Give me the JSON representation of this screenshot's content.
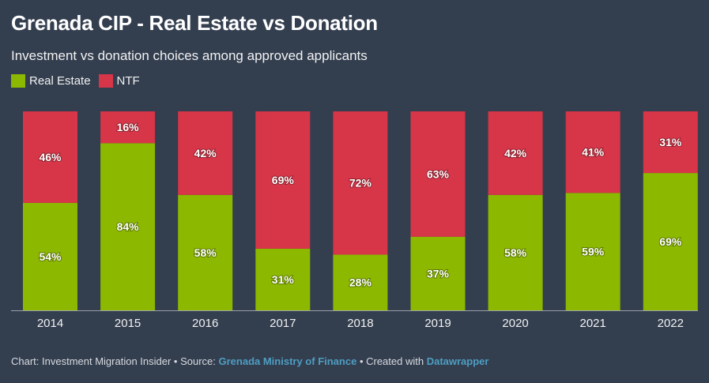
{
  "header": {
    "title": "Grenada CIP - Real Estate vs Donation",
    "subtitle": "Investment vs donation choices among approved applicants"
  },
  "legend": [
    {
      "label": "Real Estate",
      "color": "#8cb800"
    },
    {
      "label": "NTF",
      "color": "#d73548"
    }
  ],
  "footer": {
    "chart_prefix": "Chart: Investment Migration Insider • Source: ",
    "source_link": "Grenada Ministry of Finance",
    "created_prefix": " • Created with ",
    "created_link": "Datawrapper"
  },
  "chart_data": {
    "type": "bar",
    "stacked": true,
    "orientation": "vertical",
    "title": "Grenada CIP - Real Estate vs Donation",
    "subtitle": "Investment vs donation choices among approved applicants",
    "xlabel": "",
    "ylabel": "",
    "ylim": [
      0,
      100
    ],
    "grid": false,
    "legend_position": "top-left",
    "categories": [
      "2014",
      "2015",
      "2016",
      "2017",
      "2018",
      "2019",
      "2020",
      "2021",
      "2022"
    ],
    "series": [
      {
        "name": "Real Estate",
        "color": "#8cb800",
        "values": [
          54,
          84,
          58,
          31,
          28,
          37,
          58,
          59,
          69
        ]
      },
      {
        "name": "NTF",
        "color": "#d73548",
        "values": [
          46,
          16,
          42,
          69,
          72,
          63,
          42,
          41,
          31
        ]
      }
    ],
    "value_suffix": "%"
  }
}
